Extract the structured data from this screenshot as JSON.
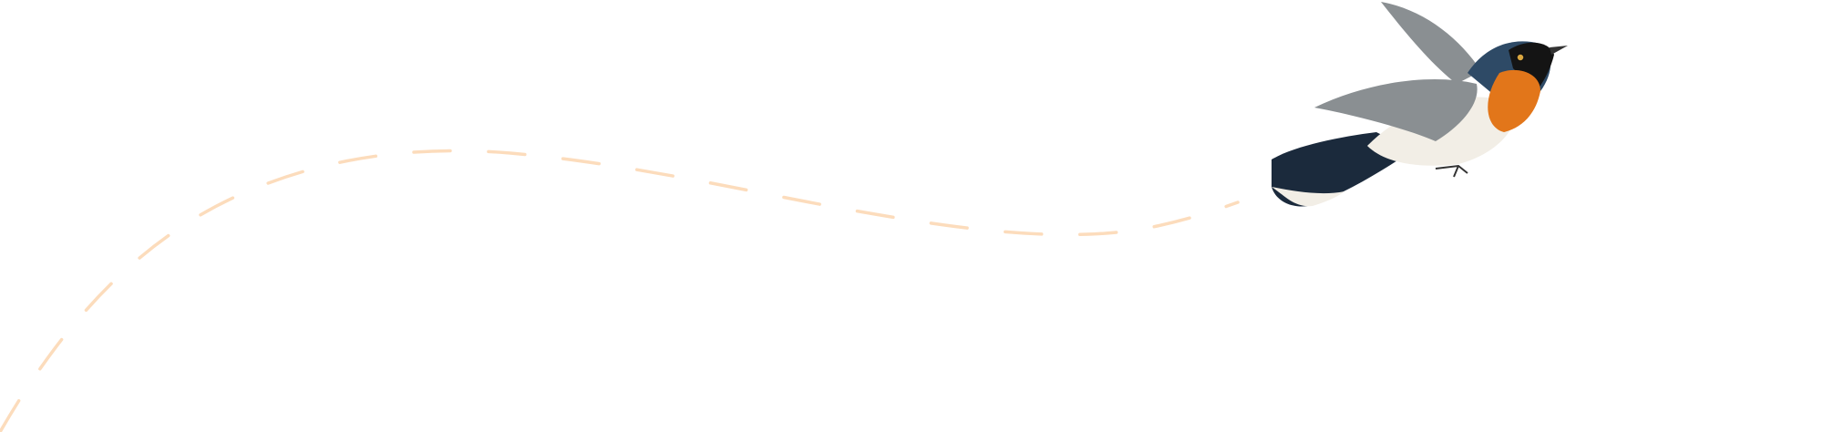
{
  "illustration": {
    "subject": "bird-in-flight",
    "path_style": "dashed",
    "colors": {
      "background": "#ffffff",
      "path": "#fcdcbc",
      "bird_head": "#2e4a66",
      "bird_mask": "#141414",
      "bird_breast": "#e2761a",
      "bird_belly": "#f2eee6",
      "bird_wing": "#8a8f92",
      "bird_tail": "#1b2a3c"
    }
  }
}
